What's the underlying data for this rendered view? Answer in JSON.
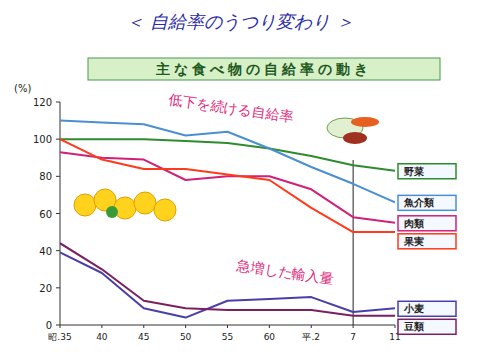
{
  "chart_data": {
    "type": "line",
    "title": "＜ 自給率のうつり変わり ＞",
    "subtitle": "主な食べ物の自給率の動き",
    "y_label": "(%)",
    "annotations": [
      "低下を続ける自給率",
      "急増した輸入量"
    ],
    "categories": [
      "昭.35",
      "40",
      "45",
      "50",
      "55",
      "60",
      "平.2",
      "7",
      "11"
    ],
    "series": [
      {
        "name": "野菜",
        "color": "#2e8b2e",
        "values": [
          100,
          100,
          100,
          99,
          98,
          95,
          91,
          86,
          83
        ]
      },
      {
        "name": "魚介類",
        "color": "#4a90d0",
        "values": [
          110,
          109,
          108,
          102,
          104,
          95,
          85,
          76,
          66
        ]
      },
      {
        "name": "肉類",
        "color": "#d0207a",
        "values": [
          93,
          90,
          89,
          78,
          80,
          80,
          73,
          58,
          55
        ]
      },
      {
        "name": "果実",
        "color": "#ff3a1a",
        "values": [
          100,
          89,
          84,
          84,
          81,
          78,
          63,
          50,
          50
        ]
      },
      {
        "name": "小麦",
        "color": "#4a3fa8",
        "values": [
          39,
          28,
          9,
          4,
          13,
          14,
          15,
          7,
          9
        ]
      },
      {
        "name": "豆類",
        "color": "#7a2060",
        "values": [
          44,
          30,
          13,
          9,
          8,
          8,
          8,
          5,
          5
        ]
      }
    ],
    "ylim": [
      0,
      120
    ],
    "yticks": [
      0,
      20,
      40,
      60,
      80,
      100,
      120
    ],
    "grid": false,
    "legend": "right"
  }
}
